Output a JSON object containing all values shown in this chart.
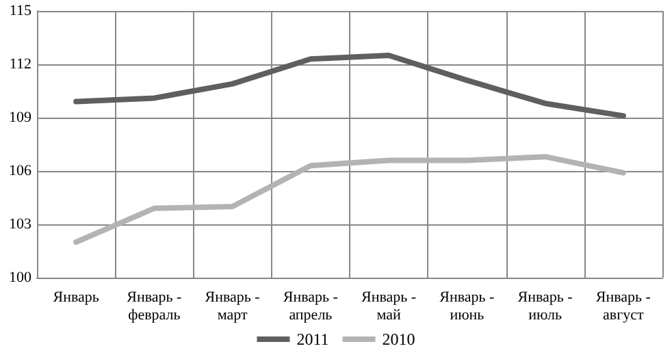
{
  "chart_data": {
    "type": "line",
    "categories": [
      "Январь",
      "Январь - февраль",
      "Январь - март",
      "Январь - апрель",
      "Январь - май",
      "Январь - июнь",
      "Январь - июль",
      "Январь - август"
    ],
    "series": [
      {
        "name": "2011",
        "color": "#5f5f5f",
        "values": [
          109.9,
          110.1,
          110.9,
          112.3,
          112.5,
          111.1,
          109.8,
          109.1
        ]
      },
      {
        "name": "2010",
        "color": "#b3b3b3",
        "values": [
          102.0,
          103.9,
          104.0,
          106.3,
          106.6,
          106.6,
          106.8,
          105.9
        ]
      }
    ],
    "ylim": [
      100,
      115
    ],
    "yticks": [
      100,
      103,
      106,
      109,
      112,
      115
    ],
    "grid": true,
    "legend": "bottom",
    "marker": "none",
    "line_style": "solid"
  }
}
